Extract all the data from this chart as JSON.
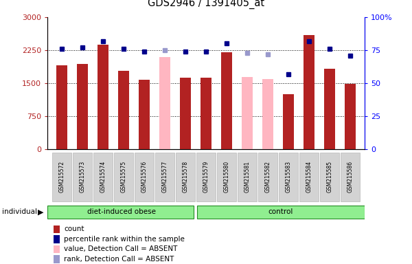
{
  "title": "GDS2946 / 1391405_at",
  "samples": [
    "GSM215572",
    "GSM215573",
    "GSM215574",
    "GSM215575",
    "GSM215576",
    "GSM215577",
    "GSM215578",
    "GSM215579",
    "GSM215580",
    "GSM215581",
    "GSM215582",
    "GSM215583",
    "GSM215584",
    "GSM215585",
    "GSM215586"
  ],
  "counts": [
    1900,
    1930,
    2380,
    1780,
    1580,
    null,
    1620,
    1620,
    2200,
    null,
    null,
    1250,
    2600,
    1830,
    1490
  ],
  "absent_values": [
    null,
    null,
    null,
    null,
    null,
    2100,
    null,
    null,
    null,
    1640,
    1600,
    null,
    null,
    null,
    null
  ],
  "percentile_ranks": [
    76,
    77,
    82,
    76,
    74,
    null,
    74,
    74,
    80,
    null,
    null,
    57,
    82,
    76,
    71
  ],
  "absent_ranks": [
    null,
    null,
    null,
    null,
    null,
    75,
    null,
    null,
    null,
    73,
    72,
    null,
    null,
    null,
    null
  ],
  "bar_color_present": "#b22222",
  "bar_color_absent": "#ffb6c1",
  "dot_color_present": "#00008b",
  "dot_color_absent": "#9999cc",
  "ylim_left": [
    0,
    3000
  ],
  "ylim_right": [
    0,
    100
  ],
  "yticks_left": [
    0,
    750,
    1500,
    2250,
    3000
  ],
  "yticks_right": [
    0,
    25,
    50,
    75,
    100
  ],
  "grid_lines": [
    750,
    1500,
    2250
  ],
  "group1_label": "diet-induced obese",
  "group1_count": 7,
  "group2_label": "control",
  "group2_count": 8,
  "group_fill": "#90ee90",
  "group_edge": "#228B22",
  "sample_box_fill": "#d3d3d3",
  "sample_box_edge": "#aaaaaa",
  "plot_bg": "#ffffff",
  "fig_bg": "#ffffff"
}
